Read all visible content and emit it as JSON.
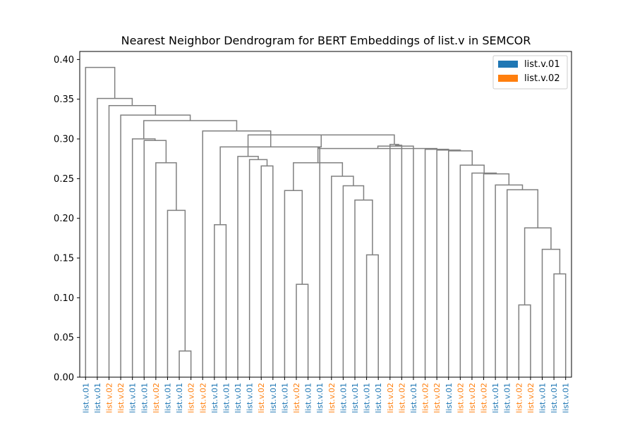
{
  "chart_data": {
    "type": "dendrogram",
    "title": "Nearest Neighbor Dendrogram for BERT Embeddings of list.v in SEMCOR",
    "xlabel": "",
    "ylabel": "",
    "ylim": [
      0,
      0.41
    ],
    "yticks": [
      0.0,
      0.05,
      0.1,
      0.15,
      0.2,
      0.25,
      0.3,
      0.35,
      0.4
    ],
    "ytick_labels": [
      "0.00",
      "0.05",
      "0.10",
      "0.15",
      "0.20",
      "0.25",
      "0.30",
      "0.35",
      "0.40"
    ],
    "legend_position": "top-right",
    "legend": [
      {
        "label": "list.v.01",
        "color": "#1f77b4"
      },
      {
        "label": "list.v.02",
        "color": "#ff7f0e"
      }
    ],
    "link_color": "#808080",
    "leaves": [
      {
        "label": "list.v.01",
        "sense": "list.v.01"
      },
      {
        "label": "list.v.01",
        "sense": "list.v.01"
      },
      {
        "label": "list.v.02",
        "sense": "list.v.02"
      },
      {
        "label": "list.v.02",
        "sense": "list.v.02"
      },
      {
        "label": "list.v.01",
        "sense": "list.v.01"
      },
      {
        "label": "list.v.01",
        "sense": "list.v.01"
      },
      {
        "label": "list.v.02",
        "sense": "list.v.02"
      },
      {
        "label": "list.v.01",
        "sense": "list.v.01"
      },
      {
        "label": "list.v.01",
        "sense": "list.v.01"
      },
      {
        "label": "list.v.02",
        "sense": "list.v.02"
      },
      {
        "label": "list.v.02",
        "sense": "list.v.02"
      },
      {
        "label": "list.v.01",
        "sense": "list.v.01"
      },
      {
        "label": "list.v.01",
        "sense": "list.v.01"
      },
      {
        "label": "list.v.01",
        "sense": "list.v.01"
      },
      {
        "label": "list.v.01",
        "sense": "list.v.01"
      },
      {
        "label": "list.v.02",
        "sense": "list.v.02"
      },
      {
        "label": "list.v.01",
        "sense": "list.v.01"
      },
      {
        "label": "list.v.01",
        "sense": "list.v.01"
      },
      {
        "label": "list.v.02",
        "sense": "list.v.02"
      },
      {
        "label": "list.v.01",
        "sense": "list.v.01"
      },
      {
        "label": "list.v.01",
        "sense": "list.v.01"
      },
      {
        "label": "list.v.02",
        "sense": "list.v.02"
      },
      {
        "label": "list.v.01",
        "sense": "list.v.01"
      },
      {
        "label": "list.v.01",
        "sense": "list.v.01"
      },
      {
        "label": "list.v.01",
        "sense": "list.v.01"
      },
      {
        "label": "list.v.01",
        "sense": "list.v.01"
      },
      {
        "label": "list.v.02",
        "sense": "list.v.02"
      },
      {
        "label": "list.v.02",
        "sense": "list.v.02"
      },
      {
        "label": "list.v.01",
        "sense": "list.v.01"
      },
      {
        "label": "list.v.02",
        "sense": "list.v.02"
      },
      {
        "label": "list.v.02",
        "sense": "list.v.02"
      },
      {
        "label": "list.v.01",
        "sense": "list.v.01"
      },
      {
        "label": "list.v.02",
        "sense": "list.v.02"
      },
      {
        "label": "list.v.02",
        "sense": "list.v.02"
      },
      {
        "label": "list.v.02",
        "sense": "list.v.02"
      },
      {
        "label": "list.v.01",
        "sense": "list.v.01"
      },
      {
        "label": "list.v.01",
        "sense": "list.v.01"
      },
      {
        "label": "list.v.02",
        "sense": "list.v.02"
      },
      {
        "label": "list.v.02",
        "sense": "list.v.02"
      },
      {
        "label": "list.v.01",
        "sense": "list.v.01"
      },
      {
        "label": "list.v.01",
        "sense": "list.v.01"
      },
      {
        "label": "list.v.01",
        "sense": "list.v.01"
      }
    ],
    "merges": [
      {
        "left": 8,
        "right": 9,
        "height": 0.033
      },
      {
        "left": 18,
        "right": 19,
        "height": 0.117
      },
      {
        "left": 40,
        "right": 41,
        "height": 0.13
      },
      {
        "left": 24,
        "right": 25,
        "height": 0.154
      },
      {
        "left": 39,
        "right": 44,
        "height": 0.161
      },
      {
        "left": 37,
        "right": 38,
        "height": 0.091
      },
      {
        "left": 47,
        "right": 46,
        "height": 0.188
      },
      {
        "left": 11,
        "right": 12,
        "height": 0.192
      },
      {
        "left": 7,
        "right": 42,
        "height": 0.21
      },
      {
        "left": 23,
        "right": 45,
        "height": 0.223
      },
      {
        "left": 17,
        "right": 43,
        "height": 0.235
      },
      {
        "left": 36,
        "right": 48,
        "height": 0.236
      },
      {
        "left": 22,
        "right": 51,
        "height": 0.241
      },
      {
        "left": 35,
        "right": 53,
        "height": 0.242
      },
      {
        "left": 21,
        "right": 54,
        "height": 0.253
      },
      {
        "left": 34,
        "right": 55,
        "height": 0.256
      },
      {
        "left": 33,
        "right": 57,
        "height": 0.257
      },
      {
        "left": 15,
        "right": 16,
        "height": 0.266
      },
      {
        "left": 32,
        "right": 58,
        "height": 0.267
      },
      {
        "left": 52,
        "right": 56,
        "height": 0.27
      },
      {
        "left": 6,
        "right": 50,
        "height": 0.27
      },
      {
        "left": 14,
        "right": 59,
        "height": 0.274
      },
      {
        "left": 13,
        "right": 63,
        "height": 0.278
      },
      {
        "left": 31,
        "right": 60,
        "height": 0.285
      },
      {
        "left": 30,
        "right": 65,
        "height": 0.286
      },
      {
        "left": 20,
        "right": 61,
        "height": 0.289
      },
      {
        "left": 29,
        "right": 66,
        "height": 0.287
      },
      {
        "left": 67,
        "right": 68,
        "height": 0.288
      },
      {
        "left": 28,
        "right": 69,
        "height": 0.291
      },
      {
        "left": 27,
        "right": 70,
        "height": 0.292
      },
      {
        "left": 26,
        "right": 71,
        "height": 0.293
      },
      {
        "left": 5,
        "right": 62,
        "height": 0.298
      },
      {
        "left": 4,
        "right": 73,
        "height": 0.3
      },
      {
        "left": 64,
        "right": 72,
        "height": 0.305
      },
      {
        "left": 49,
        "right": 75,
        "height": 0.29
      },
      {
        "left": 76,
        "right": 10,
        "height": 0.31
      },
      {
        "left": 74,
        "right": 77,
        "height": 0.323
      },
      {
        "left": 3,
        "right": 78,
        "height": 0.33
      },
      {
        "left": 2,
        "right": 79,
        "height": 0.342
      },
      {
        "left": 1,
        "right": 80,
        "height": 0.351
      },
      {
        "left": 0,
        "right": 81,
        "height": 0.39
      }
    ]
  }
}
